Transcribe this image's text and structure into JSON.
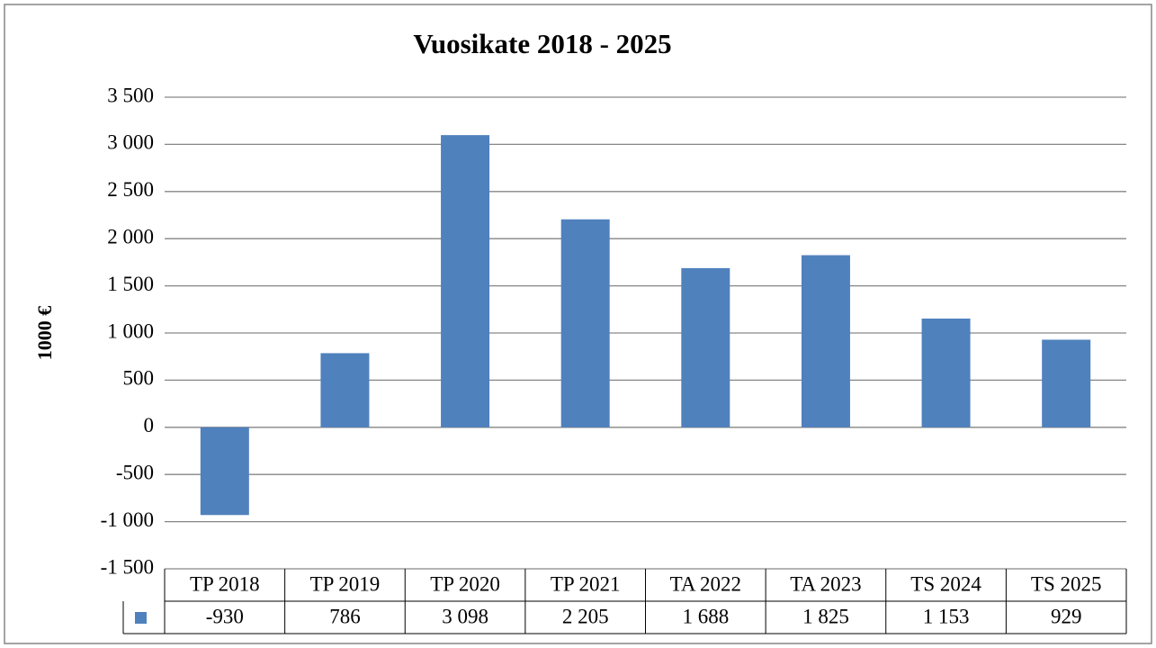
{
  "chart_data": {
    "type": "bar",
    "title": "Vuosikate 2018 - 2025",
    "y_label": "1000 €",
    "categories": [
      "TP 2018",
      "TP 2019",
      "TP 2020",
      "TP 2021",
      "TA 2022",
      "TA 2023",
      "TS 2024",
      "TS 2025"
    ],
    "values": [
      -930,
      786,
      3098,
      2205,
      1688,
      1825,
      1153,
      929
    ],
    "value_labels": [
      "-930",
      "786",
      "3 098",
      "2 205",
      "1 688",
      "1 825",
      "1 153",
      "929"
    ],
    "color": "#4f81bd",
    "ylim": [
      -1500,
      3500
    ],
    "yticks": [
      {
        "value": -1500,
        "label": "-1 500"
      },
      {
        "value": -1000,
        "label": "-1 000"
      },
      -500,
      0,
      500,
      {
        "value": 1000,
        "label": "1 000"
      },
      {
        "value": 1500,
        "label": "1 500"
      },
      {
        "value": 2000,
        "label": "2 000"
      },
      {
        "value": 2500,
        "label": "2 500"
      },
      {
        "value": 3000,
        "label": "3 000"
      },
      {
        "value": 3500,
        "label": "3 500"
      }
    ],
    "grid": true
  }
}
